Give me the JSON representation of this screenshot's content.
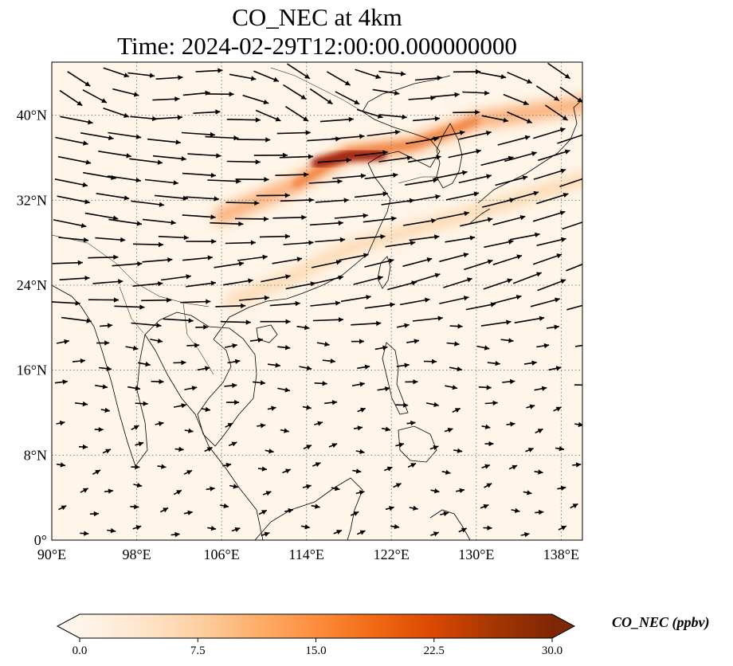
{
  "title": {
    "line1": "CO_NEC at 4km",
    "line2": "Time: 2024-02-29T12:00:00.000000000"
  },
  "map": {
    "lon_range": [
      90,
      140
    ],
    "lat_range": [
      0,
      45
    ],
    "lon_ticks": [
      {
        "value": 90,
        "label": "90°E"
      },
      {
        "value": 98,
        "label": "98°E"
      },
      {
        "value": 106,
        "label": "106°E"
      },
      {
        "value": 114,
        "label": "114°E"
      },
      {
        "value": 122,
        "label": "122°E"
      },
      {
        "value": 130,
        "label": "130°E"
      },
      {
        "value": 138,
        "label": "138°E"
      }
    ],
    "lat_ticks": [
      {
        "value": 0,
        "label": "0°"
      },
      {
        "value": 8,
        "label": "8°N"
      },
      {
        "value": 16,
        "label": "16°N"
      },
      {
        "value": 24,
        "label": "24°N"
      },
      {
        "value": 32,
        "label": "32°N"
      },
      {
        "value": 40,
        "label": "40°N"
      }
    ],
    "gridlines": true,
    "background_color": "#fff5e8",
    "plume_band": [
      [
        106,
        30.5
      ],
      [
        113,
        33.5
      ],
      [
        118,
        36.5
      ],
      [
        124,
        37.2
      ],
      [
        130,
        39.5
      ],
      [
        140,
        41
      ]
    ],
    "plume_core": [
      [
        115,
        35.5
      ],
      [
        118,
        36.2
      ],
      [
        121,
        36.3
      ]
    ],
    "south_band": [
      [
        107,
        22.5
      ],
      [
        112,
        24.5
      ],
      [
        118,
        27.5
      ],
      [
        125,
        29.5
      ],
      [
        132,
        31.5
      ],
      [
        140,
        34
      ]
    ]
  },
  "colorbar": {
    "label": "CO_NEC (ppbv)",
    "min": 0,
    "max": 30,
    "ticks": [
      "0.0",
      "7.5",
      "15.0",
      "22.5",
      "30.0"
    ],
    "colormap": [
      "#fff5eb",
      "#fee6ce",
      "#fdd0a2",
      "#fdae6b",
      "#fd8d3c",
      "#f16913",
      "#d94801",
      "#a63603",
      "#7f2704"
    ]
  }
}
